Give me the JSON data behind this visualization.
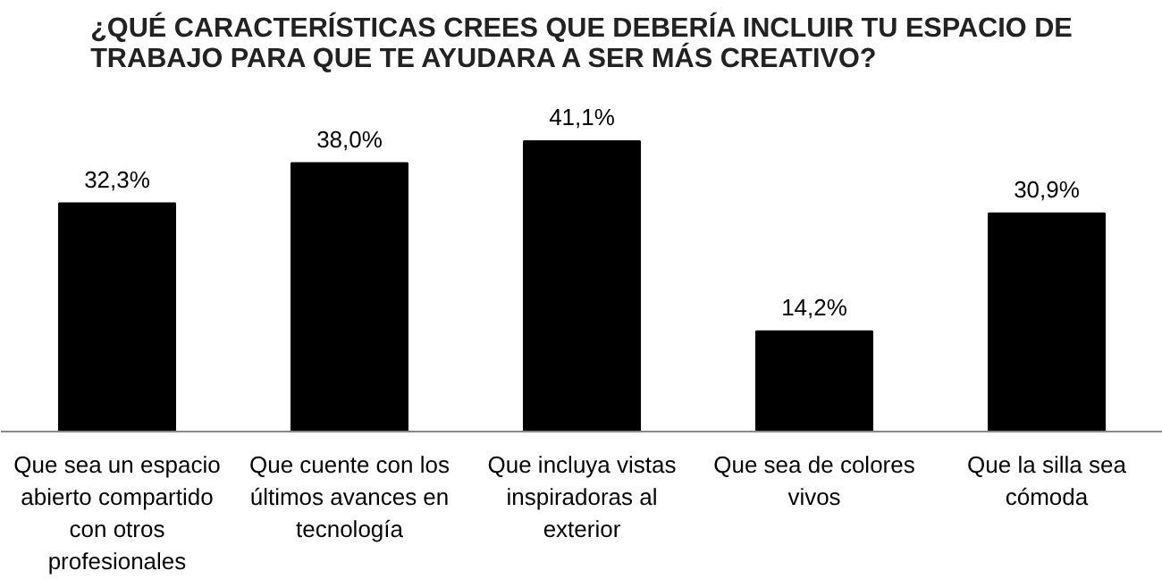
{
  "chart_data": {
    "type": "bar",
    "title": "¿QUÉ CARACTERÍSTICAS CREES QUE DEBERÍA INCLUIR TU ESPACIO DE TRABAJO PARA QUE TE AYUDARA A SER MÁS CREATIVO?",
    "categories": [
      "Que sea un espacio abierto compartido con otros profesionales",
      "Que cuente con los últimos avances en tecnología",
      "Que incluya vistas inspiradoras al exterior",
      "Que sea de colores vivos",
      "Que la silla sea cómoda"
    ],
    "values": [
      32.3,
      38.0,
      41.1,
      14.2,
      30.9
    ],
    "value_labels": [
      "32,3%",
      "38,0%",
      "41,1%",
      "14,2%",
      "30,9%"
    ],
    "color": "#000000",
    "grid": false
  }
}
